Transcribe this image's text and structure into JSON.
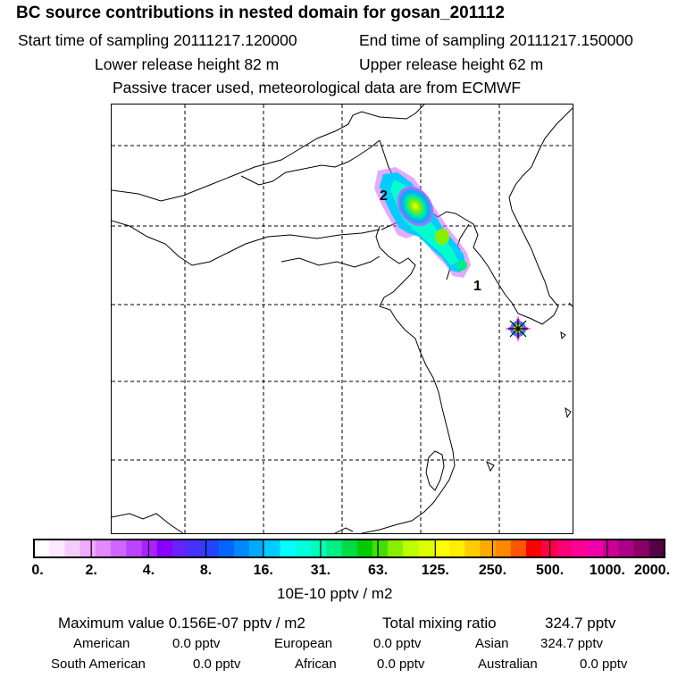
{
  "header": {
    "title": "BC  source contributions in nested domain for gosan_201112",
    "start_label": "Start time of sampling 20111217.120000",
    "end_label": "End time of sampling 20111217.150000",
    "lower_label": "Lower release height   82 m",
    "upper_label": "Upper release height   62 m",
    "note": "Passive tracer used, meteorological data are from ECMWF"
  },
  "map": {
    "site_labels": [
      "2",
      "1"
    ]
  },
  "colorbar": {
    "ticks": [
      "0.",
      "2.",
      "4.",
      "8.",
      "16.",
      "31.",
      "63.",
      "125.",
      "250.",
      "500.",
      "1000.",
      "2000."
    ],
    "unit": "10E-10 pptv / m2",
    "colors": [
      "#ffffff",
      "#fbe8ff",
      "#f5ccff",
      "#eeaaff",
      "#e488ff",
      "#cc66ff",
      "#bb44ff",
      "#aa22ff",
      "#8800ff",
      "#6622ff",
      "#4433ff",
      "#2244ff",
      "#0066ff",
      "#0088ff",
      "#00aaff",
      "#00ccff",
      "#00ffff",
      "#00ffdd",
      "#00ffbb",
      "#00ee88",
      "#00dd44",
      "#00cc00",
      "#44dd00",
      "#88ee00",
      "#bbff00",
      "#ddff00",
      "#ffff00",
      "#ffee00",
      "#ffcc00",
      "#ffaa00",
      "#ff8800",
      "#ff5500",
      "#ff0000",
      "#ff0044",
      "#ff0077",
      "#ff0099",
      "#ee00aa",
      "#cc0099",
      "#aa0088",
      "#880066",
      "#550044"
    ]
  },
  "stats": {
    "max_label": "Maximum value  0.156E-07 pptv / m2",
    "total_label": "Total mixing ratio",
    "total_value": "324.7 pptv",
    "american_label": "American",
    "american_value": "0.0 pptv",
    "european_label": "European",
    "european_value": "0.0 pptv",
    "asian_label": "Asian",
    "asian_value": "324.7 pptv",
    "south_american_label": "South American",
    "south_american_value": "0.0 pptv",
    "african_label": "African",
    "african_value": "0.0 pptv",
    "australian_label": "Australian",
    "australian_value": "0.0 pptv"
  }
}
